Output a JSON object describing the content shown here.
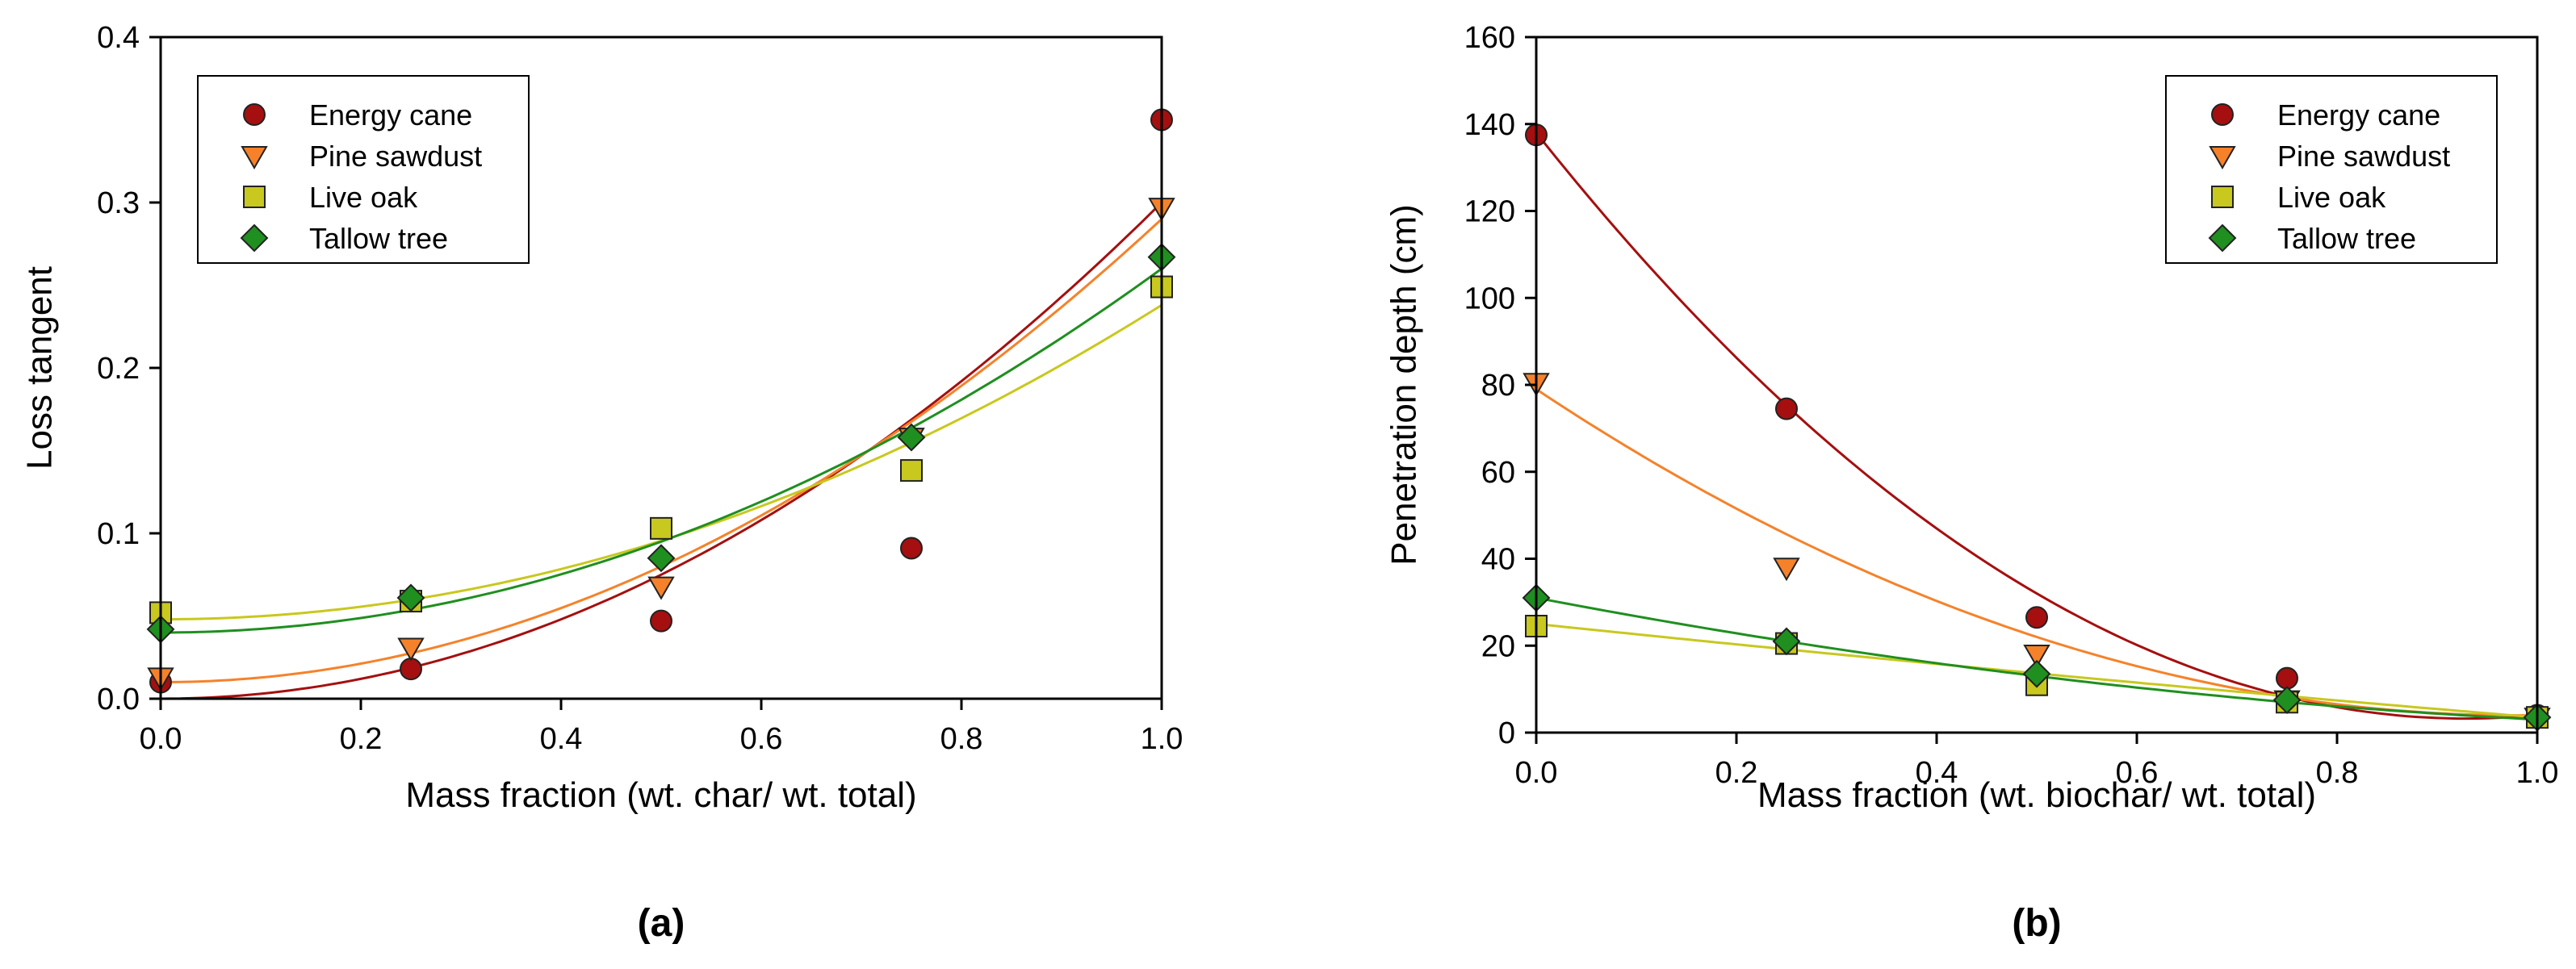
{
  "chart_data": [
    {
      "type": "scatter",
      "panel_label": "(a)",
      "xlabel": "Mass fraction (wt. char/ wt. total)",
      "ylabel": "Loss tangent",
      "xlim": [
        0.0,
        1.0
      ],
      "ylim": [
        0.0,
        0.4
      ],
      "xticks": [
        "0.0",
        "0.2",
        "0.4",
        "0.6",
        "0.8",
        "1.0"
      ],
      "yticks": [
        "0.0",
        "0.1",
        "0.2",
        "0.3",
        "0.4"
      ],
      "grid": false,
      "legend_position": "top-left",
      "x": [
        0.0,
        0.25,
        0.5,
        0.75,
        1.0
      ],
      "series": [
        {
          "name": "Energy cane",
          "marker": "circle",
          "color": "#a50f0f",
          "values": [
            0.01,
            0.018,
            0.047,
            0.091,
            0.35
          ],
          "fit": [
            0.0,
            0.0,
            0.3
          ]
        },
        {
          "name": "Pine sawdust",
          "marker": "triangle-down",
          "color": "#f5822a",
          "values": [
            0.013,
            0.031,
            0.068,
            0.158,
            0.297
          ],
          "fit": [
            0.01,
            0.0,
            0.28
          ]
        },
        {
          "name": "Live oak",
          "marker": "square",
          "color": "#c8c81e",
          "values": [
            0.052,
            0.059,
            0.103,
            0.138,
            0.249
          ],
          "fit": [
            0.048,
            0.0,
            0.19
          ]
        },
        {
          "name": "Tallow tree",
          "marker": "diamond",
          "color": "#1f8f1f",
          "values": [
            0.042,
            0.061,
            0.085,
            0.158,
            0.267
          ],
          "fit": [
            0.04,
            0.0,
            0.22
          ]
        }
      ]
    },
    {
      "type": "scatter",
      "panel_label": "(b)",
      "xlabel": "Mass fraction (wt. biochar/ wt. total)",
      "ylabel": "Penetration depth (cm)",
      "xlim": [
        0.0,
        1.0
      ],
      "ylim": [
        0,
        160
      ],
      "xticks": [
        "0.0",
        "0.2",
        "0.4",
        "0.6",
        "0.8",
        "1.0"
      ],
      "yticks": [
        "0",
        "20",
        "40",
        "60",
        "80",
        "100",
        "120",
        "140",
        "160"
      ],
      "grid": false,
      "legend_position": "top-right",
      "x": [
        0.0,
        0.25,
        0.5,
        0.75,
        1.0
      ],
      "series": [
        {
          "name": "Energy cane",
          "marker": "circle",
          "color": "#a50f0f",
          "values": [
            137.5,
            74.5,
            26.5,
            12.5,
            4.0
          ],
          "fit": [
            138.0,
            -290.0,
            156.0
          ]
        },
        {
          "name": "Pine sawdust",
          "marker": "triangle-down",
          "color": "#f5822a",
          "values": [
            80.5,
            38.0,
            18.0,
            7.5,
            3.5
          ],
          "fit": [
            79.0,
            -153.0,
            78.0
          ]
        },
        {
          "name": "Live oak",
          "marker": "square",
          "color": "#c8c81e",
          "values": [
            24.5,
            20.5,
            11.0,
            7.0,
            3.5
          ],
          "fit": [
            25.0,
            -24.0,
            2.5
          ]
        },
        {
          "name": "Tallow tree",
          "marker": "diamond",
          "color": "#1f8f1f",
          "values": [
            31.0,
            21.0,
            13.5,
            7.5,
            3.5
          ],
          "fit": [
            31.0,
            -44.0,
            16.0
          ]
        }
      ]
    }
  ]
}
